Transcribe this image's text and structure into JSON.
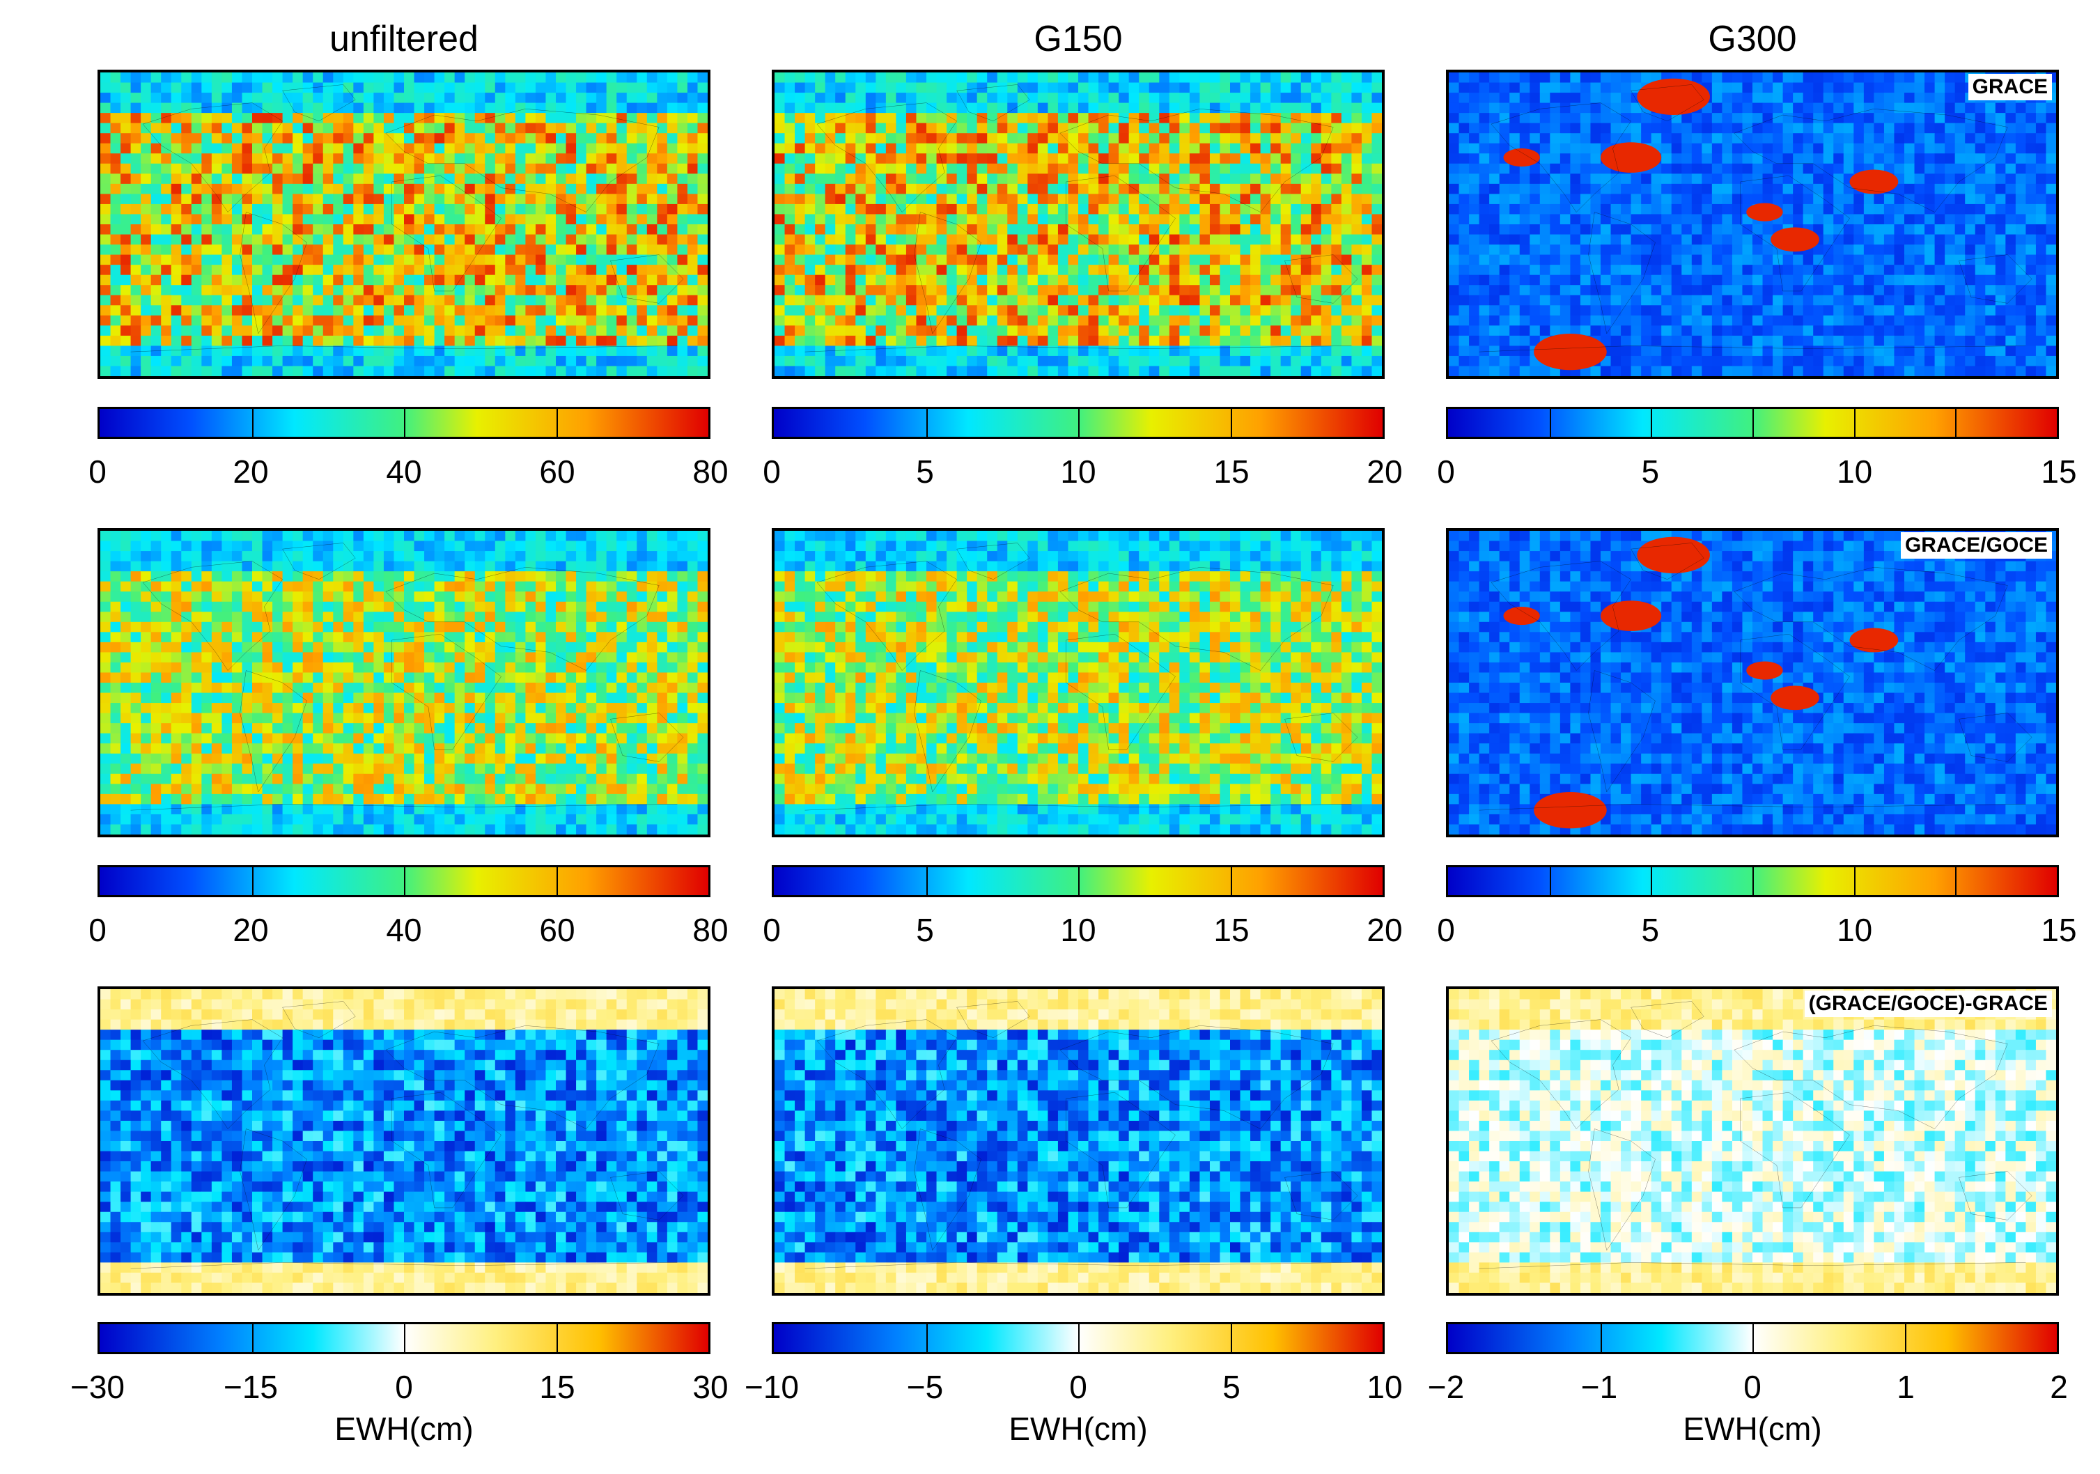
{
  "chart_data": {
    "type": "heatmap",
    "description_columns": [
      "unfiltered",
      "G150",
      "G300"
    ],
    "column_titles": [
      "unfiltered",
      "G150",
      "G300"
    ],
    "row_labels": [
      "GRACE",
      "GRACE/GOCE",
      "(GRACE/GOCE)-GRACE"
    ],
    "colorbar_unit_label": "EWH(cm)",
    "colorbars": [
      [
        {
          "ticks": [
            "0",
            "20",
            "40",
            "60",
            "80"
          ],
          "range": [
            0,
            80
          ],
          "scale": "jet"
        },
        {
          "ticks": [
            "0",
            "5",
            "10",
            "15",
            "20"
          ],
          "range": [
            0,
            20
          ],
          "scale": "jet"
        },
        {
          "ticks": [
            "0",
            "5",
            "10",
            "15"
          ],
          "range": [
            0,
            15
          ],
          "scale": "jet"
        }
      ],
      [
        {
          "ticks": [
            "0",
            "20",
            "40",
            "60",
            "80"
          ],
          "range": [
            0,
            80
          ],
          "scale": "jet"
        },
        {
          "ticks": [
            "0",
            "5",
            "10",
            "15",
            "20"
          ],
          "range": [
            0,
            20
          ],
          "scale": "jet"
        },
        {
          "ticks": [
            "0",
            "5",
            "10",
            "15"
          ],
          "range": [
            0,
            15
          ],
          "scale": "jet"
        }
      ],
      [
        {
          "ticks": [
            "−30",
            "−15",
            "0",
            "15",
            "30"
          ],
          "range": [
            -30,
            30
          ],
          "scale": "diverging"
        },
        {
          "ticks": [
            "−10",
            "−5",
            "0",
            "5",
            "10"
          ],
          "range": [
            -10,
            10
          ],
          "scale": "diverging"
        },
        {
          "ticks": [
            "−2",
            "−1",
            "0",
            "1",
            "2"
          ],
          "range": [
            -2,
            2
          ],
          "scale": "diverging"
        }
      ]
    ]
  }
}
